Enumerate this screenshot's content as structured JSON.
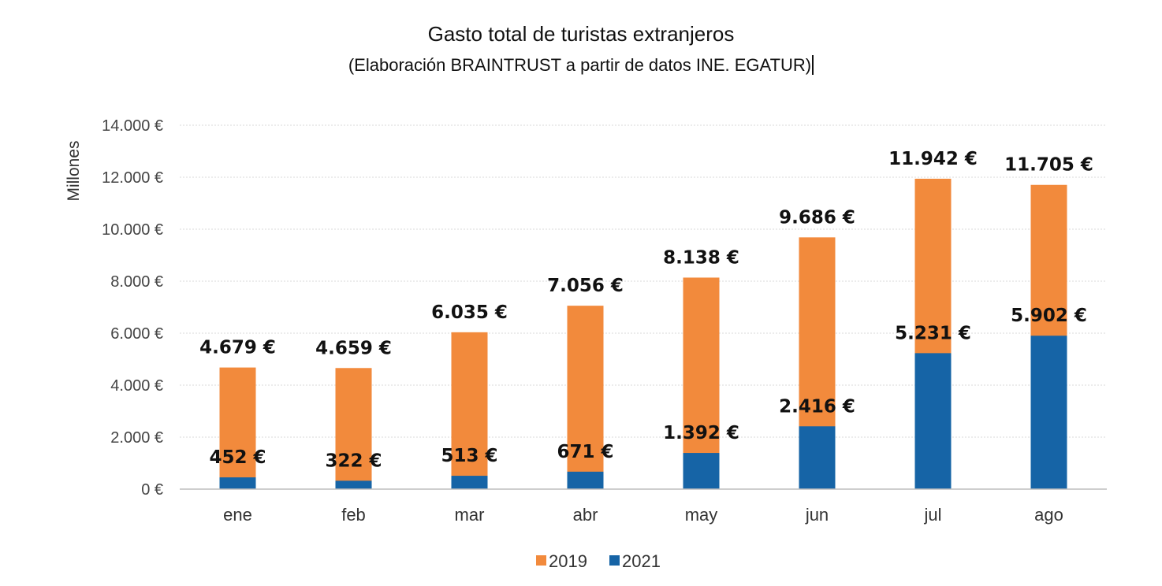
{
  "chart_data": {
    "type": "bar",
    "stacked": false,
    "overlap": true,
    "title": "Gasto total de turistas extranjeros",
    "subtitle": "(Elaboración BRAINTRUST a partir de datos INE. EGATUR)",
    "ylabel": "Millones",
    "xlabel": "",
    "ylim": [
      0,
      14000
    ],
    "yticks": [
      0,
      2000,
      4000,
      6000,
      8000,
      10000,
      12000,
      14000
    ],
    "ytick_labels": [
      "0 €",
      "2.000 €",
      "4.000 €",
      "6.000 €",
      "8.000 €",
      "10.000 €",
      "12.000 €",
      "14.000 €"
    ],
    "grid": true,
    "legend_position": "bottom",
    "categories": [
      "ene",
      "feb",
      "mar",
      "abr",
      "may",
      "jun",
      "jul",
      "ago"
    ],
    "series": [
      {
        "name": "2019",
        "color": "#F28A3C",
        "values": [
          4679,
          4659,
          6035,
          7056,
          8138,
          9686,
          11942,
          11705
        ],
        "labels": [
          "4.679 €",
          "4.659 €",
          "6.035 €",
          "7.056 €",
          "8.138 €",
          "9.686 €",
          "11.942 €",
          "11.705 €"
        ]
      },
      {
        "name": "2021",
        "color": "#1664A6",
        "values": [
          452,
          322,
          513,
          671,
          1392,
          2416,
          5231,
          5902
        ],
        "labels": [
          "452 €",
          "322 €",
          "513 €",
          "671 €",
          "1.392 €",
          "2.416 €",
          "5.231 €",
          "5.902 €"
        ]
      }
    ]
  }
}
